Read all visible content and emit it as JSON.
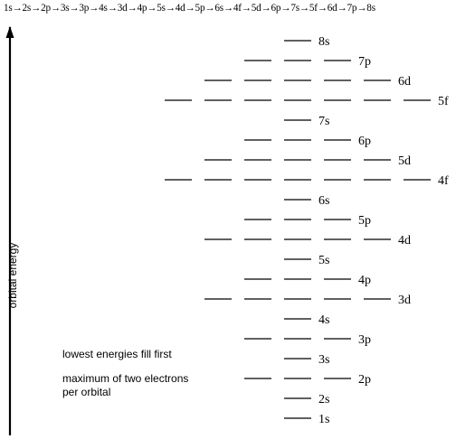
{
  "filling_order": "1s→2s→2p→3s→3p→4s→3d→4p→5s→4d→5p→6s→4f→5d→6p→7s→5f→6d→7p→8s",
  "axis_label": "orbital energy",
  "notes": {
    "lowest_first": "lowest energies fill first",
    "max_electrons_line1": "maximum of two electrons",
    "max_electrons_line2": "per orbital"
  },
  "levels": [
    {
      "name": "1s",
      "orbitals": 1
    },
    {
      "name": "2s",
      "orbitals": 1
    },
    {
      "name": "2p",
      "orbitals": 3
    },
    {
      "name": "3s",
      "orbitals": 1
    },
    {
      "name": "3p",
      "orbitals": 3
    },
    {
      "name": "4s",
      "orbitals": 1
    },
    {
      "name": "3d",
      "orbitals": 5
    },
    {
      "name": "4p",
      "orbitals": 3
    },
    {
      "name": "5s",
      "orbitals": 1
    },
    {
      "name": "4d",
      "orbitals": 5
    },
    {
      "name": "5p",
      "orbitals": 3
    },
    {
      "name": "6s",
      "orbitals": 1
    },
    {
      "name": "4f",
      "orbitals": 7
    },
    {
      "name": "5d",
      "orbitals": 5
    },
    {
      "name": "6p",
      "orbitals": 3
    },
    {
      "name": "7s",
      "orbitals": 1
    },
    {
      "name": "5f",
      "orbitals": 7
    },
    {
      "name": "6d",
      "orbitals": 5
    },
    {
      "name": "7p",
      "orbitals": 3
    },
    {
      "name": "8s",
      "orbitals": 1
    }
  ]
}
